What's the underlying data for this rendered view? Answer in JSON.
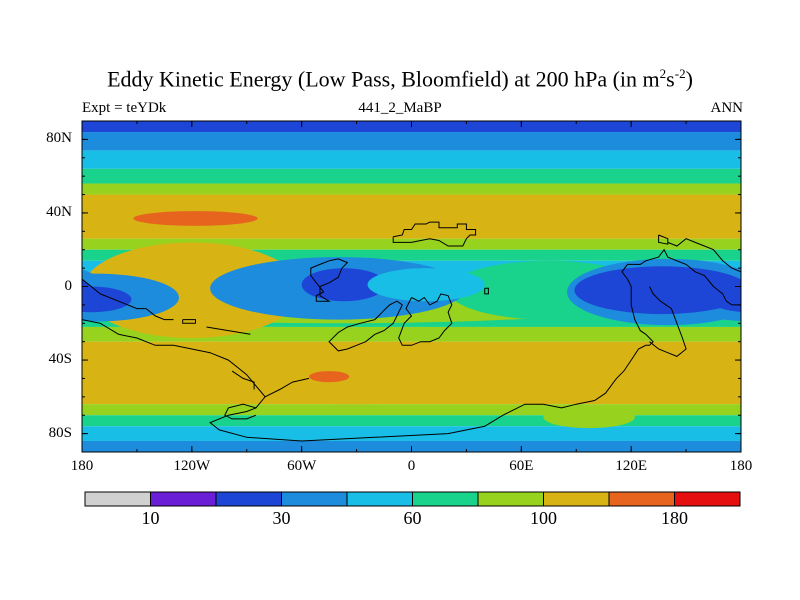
{
  "chart_data": {
    "type": "heatmap",
    "title_main": "Eddy Kinetic Energy (Low Pass, Bloomfield) at 200 hPa (in m",
    "title_sup1": "2",
    "title_mid": "s",
    "title_sup2": "-2",
    "title_end": ")",
    "subtitle_left": "Expt = teYDk",
    "subtitle_center": "441_2_MaBP",
    "subtitle_right": "ANN",
    "xlim": [
      -180,
      180
    ],
    "ylim": [
      -90,
      90
    ],
    "lat_ticks": [
      {
        "value": 80,
        "label": "80N"
      },
      {
        "value": 40,
        "label": "40N"
      },
      {
        "value": 0,
        "label": "0"
      },
      {
        "value": -40,
        "label": "40S"
      },
      {
        "value": -80,
        "label": "80S"
      }
    ],
    "lon_ticks": [
      {
        "value": -180,
        "label": "180"
      },
      {
        "value": -120,
        "label": "120W"
      },
      {
        "value": -60,
        "label": "60W"
      },
      {
        "value": 0,
        "label": "0"
      },
      {
        "value": 60,
        "label": "60E"
      },
      {
        "value": 120,
        "label": "120E"
      },
      {
        "value": 180,
        "label": "180"
      }
    ],
    "colorbar": {
      "colors": [
        "#d0d0d0",
        "#6a1ed6",
        "#1e46d6",
        "#1e8cdc",
        "#19bee6",
        "#19d28c",
        "#96d21e",
        "#d7b414",
        "#e6641e",
        "#e60f0f"
      ],
      "labels": [
        {
          "index": 1,
          "text": "10"
        },
        {
          "index": 3,
          "text": "30"
        },
        {
          "index": 5,
          "text": "60"
        },
        {
          "index": 7,
          "text": "100"
        },
        {
          "index": 9,
          "text": "180"
        }
      ]
    },
    "lat_bands": [
      {
        "lat_range": [
          84,
          90
        ],
        "level": 2
      },
      {
        "lat_range": [
          74,
          84
        ],
        "level": 3
      },
      {
        "lat_range": [
          64,
          74
        ],
        "level": 4
      },
      {
        "lat_range": [
          56,
          64
        ],
        "level": 5
      },
      {
        "lat_range": [
          50,
          56
        ],
        "level": 6
      },
      {
        "lat_range": [
          26,
          50
        ],
        "level": 7
      },
      {
        "lat_range": [
          20,
          26
        ],
        "level": 6
      },
      {
        "lat_range": [
          14,
          20
        ],
        "level": 5
      },
      {
        "lat_range": [
          -14,
          14
        ],
        "level": 4
      },
      {
        "lat_range": [
          -22,
          -14
        ],
        "level": 5
      },
      {
        "lat_range": [
          -30,
          -22
        ],
        "level": 6
      },
      {
        "lat_range": [
          -64,
          -30
        ],
        "level": 7
      },
      {
        "lat_range": [
          -70,
          -64
        ],
        "level": 6
      },
      {
        "lat_range": [
          -76,
          -70
        ],
        "level": 5
      },
      {
        "lat_range": [
          -84,
          -76
        ],
        "level": 4
      },
      {
        "lat_range": [
          -90,
          -84
        ],
        "level": 3
      }
    ],
    "features": [
      {
        "lon": -40,
        "lat": -6,
        "rlon": 180,
        "rlat": 14,
        "level": 6
      },
      {
        "lon": -120,
        "lat": -2,
        "rlon": 60,
        "rlat": 26,
        "level": 7
      },
      {
        "lon": 75,
        "lat": -2,
        "rlon": 55,
        "rlat": 16,
        "level": 5
      },
      {
        "lon": 155,
        "lat": -4,
        "rlon": 35,
        "rlat": 12,
        "level": 5
      },
      {
        "lon": 140,
        "lat": -3,
        "rlon": 55,
        "rlat": 18,
        "level": 3
      },
      {
        "lon": -40,
        "lat": -1,
        "rlon": 70,
        "rlat": 17,
        "level": 3
      },
      {
        "lon": -172,
        "lat": -6,
        "rlon": 45,
        "rlat": 13,
        "level": 3
      },
      {
        "lon": 137,
        "lat": -2,
        "rlon": 48,
        "rlat": 13,
        "level": 2
      },
      {
        "lon": -37,
        "lat": 1,
        "rlon": 23,
        "rlat": 9,
        "level": 2
      },
      {
        "lon": -175,
        "lat": -7,
        "rlon": 22,
        "rlat": 7,
        "level": 2
      },
      {
        "lon": 8,
        "lat": 1,
        "rlon": 32,
        "rlat": 9,
        "level": 4
      },
      {
        "lon": -30,
        "lat": -56,
        "rlon": 100,
        "rlat": 8,
        "level": 7
      },
      {
        "lon": -118,
        "lat": 37,
        "rlon": 34,
        "rlat": 4,
        "level": 8
      },
      {
        "lon": -45,
        "lat": -49,
        "rlon": 11,
        "rlat": 3,
        "level": 8
      },
      {
        "lon": 97,
        "lat": -71,
        "rlon": 25,
        "rlat": 6,
        "level": 6
      }
    ],
    "coastline_polylines": [
      [
        [
          -10,
          27
        ],
        [
          -5,
          28
        ],
        [
          -4,
          31
        ],
        [
          0,
          31
        ],
        [
          2,
          34
        ],
        [
          8,
          34
        ],
        [
          10,
          35
        ],
        [
          15,
          35
        ],
        [
          15,
          32
        ],
        [
          20,
          32
        ],
        [
          25,
          32
        ],
        [
          25,
          34
        ],
        [
          30,
          34
        ],
        [
          30,
          31
        ],
        [
          35,
          31
        ],
        [
          35,
          28
        ],
        [
          32,
          28
        ],
        [
          30,
          26
        ],
        [
          28,
          22
        ],
        [
          20,
          22
        ],
        [
          15,
          25
        ],
        [
          10,
          26
        ],
        [
          5,
          25
        ],
        [
          0,
          24
        ],
        [
          -10,
          24
        ],
        [
          -10,
          27
        ]
      ],
      [
        [
          -45,
          14
        ],
        [
          -40,
          15
        ],
        [
          -35,
          13
        ],
        [
          -38,
          10
        ],
        [
          -40,
          5
        ],
        [
          -45,
          2
        ],
        [
          -50,
          0
        ],
        [
          -50,
          -5
        ],
        [
          -45,
          -8
        ],
        [
          -52,
          -8
        ],
        [
          -52,
          -5
        ],
        [
          -48,
          -3
        ],
        [
          -52,
          2
        ],
        [
          -55,
          6
        ],
        [
          -55,
          10
        ],
        [
          -50,
          12
        ],
        [
          -45,
          14
        ]
      ],
      [
        [
          -20,
          -18
        ],
        [
          -16,
          -14
        ],
        [
          -12,
          -10
        ],
        [
          -8,
          -8
        ],
        [
          -5,
          -10
        ],
        [
          -8,
          -16
        ],
        [
          -10,
          -20
        ],
        [
          -15,
          -24
        ],
        [
          -20,
          -26
        ],
        [
          -25,
          -30
        ],
        [
          -30,
          -32
        ],
        [
          -35,
          -34
        ],
        [
          -40,
          -35
        ],
        [
          -45,
          -30
        ],
        [
          -40,
          -25
        ],
        [
          -35,
          -22
        ],
        [
          -28,
          -20
        ],
        [
          -20,
          -18
        ]
      ],
      [
        [
          0,
          -6
        ],
        [
          4,
          -8
        ],
        [
          7,
          -6
        ],
        [
          10,
          -10
        ],
        [
          14,
          -8
        ],
        [
          16,
          -4
        ],
        [
          20,
          -5
        ],
        [
          22,
          -10
        ],
        [
          20,
          -14
        ],
        [
          22,
          -20
        ],
        [
          18,
          -24
        ],
        [
          15,
          -28
        ],
        [
          10,
          -30
        ],
        [
          5,
          -30
        ],
        [
          0,
          -32
        ],
        [
          -5,
          -32
        ],
        [
          -7,
          -28
        ],
        [
          -4,
          -20
        ],
        [
          0,
          -16
        ],
        [
          -3,
          -12
        ],
        [
          0,
          -6
        ]
      ],
      [
        [
          40,
          -1
        ],
        [
          42,
          -1
        ],
        [
          42,
          -4
        ],
        [
          40,
          -4
        ],
        [
          40,
          -1
        ]
      ],
      [
        [
          120,
          0
        ],
        [
          118,
          4
        ],
        [
          115,
          8
        ],
        [
          118,
          12
        ],
        [
          125,
          12
        ],
        [
          128,
          14
        ],
        [
          135,
          16
        ],
        [
          138,
          20
        ],
        [
          140,
          16
        ],
        [
          145,
          14
        ],
        [
          150,
          12
        ],
        [
          155,
          8
        ],
        [
          160,
          6
        ],
        [
          165,
          0
        ],
        [
          170,
          -4
        ],
        [
          172,
          -8
        ],
        [
          175,
          -10
        ],
        [
          180,
          -10
        ]
      ],
      [
        [
          120,
          0
        ],
        [
          120,
          -10
        ],
        [
          122,
          -18
        ],
        [
          125,
          -24
        ],
        [
          128,
          -26
        ],
        [
          130,
          -28
        ],
        [
          132,
          -30
        ],
        [
          130,
          -32
        ],
        [
          128,
          -32
        ],
        [
          124,
          -34
        ],
        [
          120,
          -40
        ],
        [
          116,
          -46
        ],
        [
          112,
          -50
        ],
        [
          106,
          -58
        ],
        [
          100,
          -62
        ],
        [
          90,
          -64
        ],
        [
          82,
          -66
        ],
        [
          72,
          -64
        ],
        [
          62,
          -64
        ],
        [
          50,
          -70
        ],
        [
          40,
          -76
        ],
        [
          20,
          -80
        ],
        [
          -20,
          -82
        ],
        [
          -60,
          -84
        ],
        [
          -90,
          -82
        ],
        [
          -105,
          -78
        ],
        [
          -110,
          -74
        ],
        [
          -100,
          -70
        ],
        [
          -90,
          -68
        ],
        [
          -85,
          -66
        ],
        [
          -80,
          -60
        ],
        [
          -85,
          -54
        ],
        [
          -90,
          -48
        ],
        [
          -95,
          -44
        ],
        [
          -100,
          -40
        ],
        [
          -110,
          -36
        ],
        [
          -120,
          -34
        ],
        [
          -130,
          -32
        ],
        [
          -140,
          -32
        ],
        [
          -150,
          -28
        ],
        [
          -160,
          -26
        ],
        [
          -170,
          -20
        ],
        [
          -180,
          -18
        ]
      ],
      [
        [
          130,
          0
        ],
        [
          132,
          -4
        ],
        [
          136,
          -8
        ],
        [
          142,
          -12
        ],
        [
          145,
          -20
        ],
        [
          148,
          -28
        ],
        [
          150,
          -34
        ],
        [
          145,
          -38
        ],
        [
          140,
          -36
        ],
        [
          135,
          -34
        ],
        [
          130,
          -30
        ]
      ],
      [
        [
          140,
          24
        ],
        [
          145,
          22
        ],
        [
          150,
          26
        ],
        [
          155,
          24
        ],
        [
          160,
          22
        ],
        [
          165,
          20
        ],
        [
          170,
          14
        ],
        [
          175,
          10
        ],
        [
          180,
          8
        ]
      ],
      [
        [
          -180,
          4
        ],
        [
          -175,
          0
        ],
        [
          -170,
          -4
        ],
        [
          -160,
          -8
        ],
        [
          -150,
          -12
        ],
        [
          -145,
          -12
        ],
        [
          -140,
          -16
        ],
        [
          -135,
          -18
        ],
        [
          -130,
          -18
        ]
      ],
      [
        [
          -125,
          -18
        ],
        [
          -118,
          -18
        ],
        [
          -118,
          -20
        ],
        [
          -125,
          -20
        ],
        [
          -125,
          -18
        ]
      ],
      [
        [
          -112,
          -22
        ],
        [
          -100,
          -24
        ],
        [
          -88,
          -26
        ]
      ],
      [
        [
          -98,
          -46
        ],
        [
          -92,
          -50
        ],
        [
          -86,
          -52
        ],
        [
          -86,
          -56
        ]
      ],
      [
        [
          -85,
          -66
        ],
        [
          -92,
          -64
        ],
        [
          -100,
          -66
        ],
        [
          -102,
          -70
        ],
        [
          -98,
          -72
        ],
        [
          -90,
          -72
        ],
        [
          -85,
          -70
        ]
      ],
      [
        [
          -80,
          -60
        ],
        [
          -72,
          -56
        ],
        [
          -65,
          -52
        ],
        [
          -56,
          -50
        ]
      ],
      [
        [
          135,
          28
        ],
        [
          140,
          26
        ],
        [
          140,
          23
        ],
        [
          135,
          24
        ],
        [
          135,
          28
        ]
      ]
    ]
  }
}
